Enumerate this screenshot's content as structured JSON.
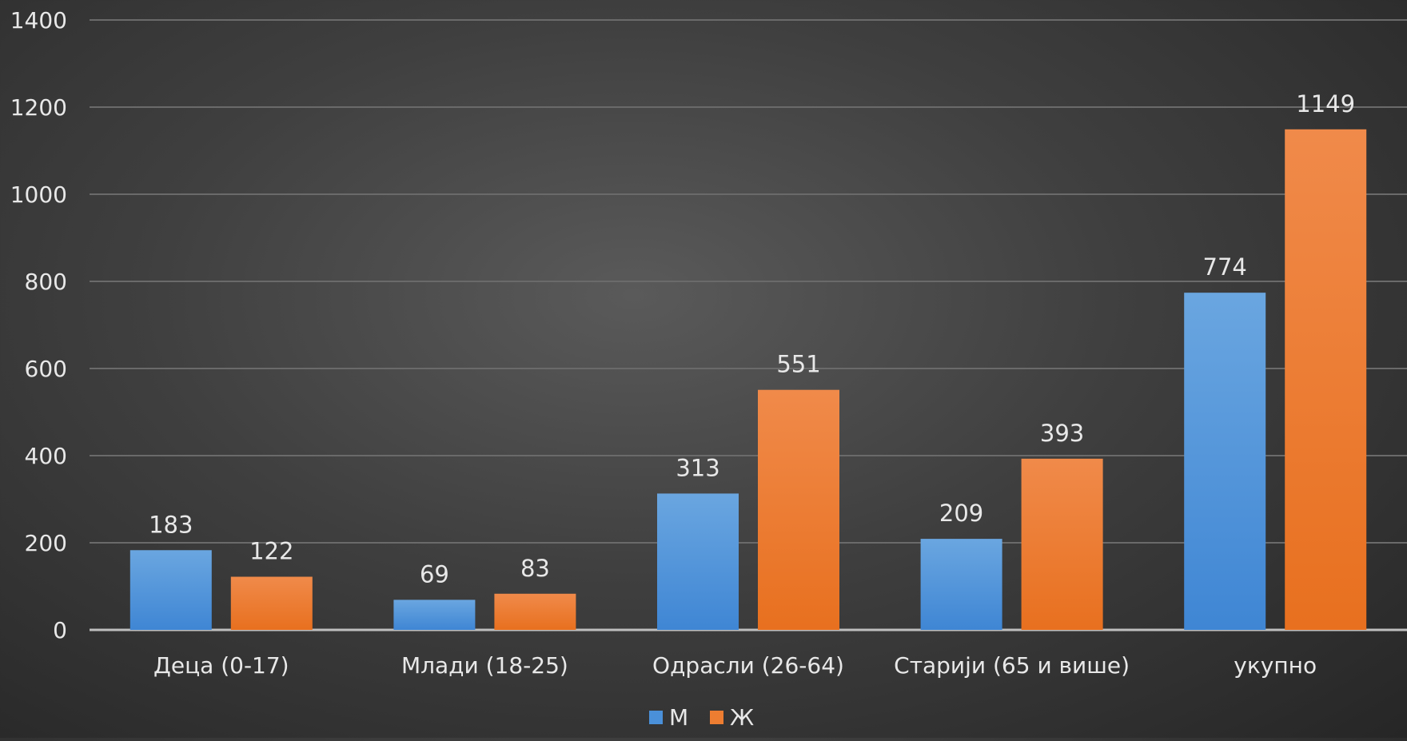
{
  "colors": {
    "male": "#4a90d9",
    "female": "#ed7d31",
    "grid": "#6a6a6a",
    "text": "#e8e8e8",
    "axis": "#bfbfbf"
  },
  "chart_data": {
    "type": "bar",
    "title": "",
    "xlabel": "",
    "ylabel": "",
    "categories": [
      "Деца (0-17)",
      "Млади (18-25)",
      "Одрасли (26-64)",
      "Старији (65 и више)",
      "укупно"
    ],
    "series": [
      {
        "name": "М",
        "values": [
          183,
          69,
          313,
          209,
          774
        ]
      },
      {
        "name": "Ж",
        "values": [
          122,
          83,
          551,
          393,
          1149
        ]
      }
    ],
    "ylim": [
      0,
      1400
    ],
    "yticks": [
      0,
      200,
      400,
      600,
      800,
      1000,
      1200,
      1400
    ],
    "grid": true,
    "legend": "bottom",
    "data_labels": true
  }
}
